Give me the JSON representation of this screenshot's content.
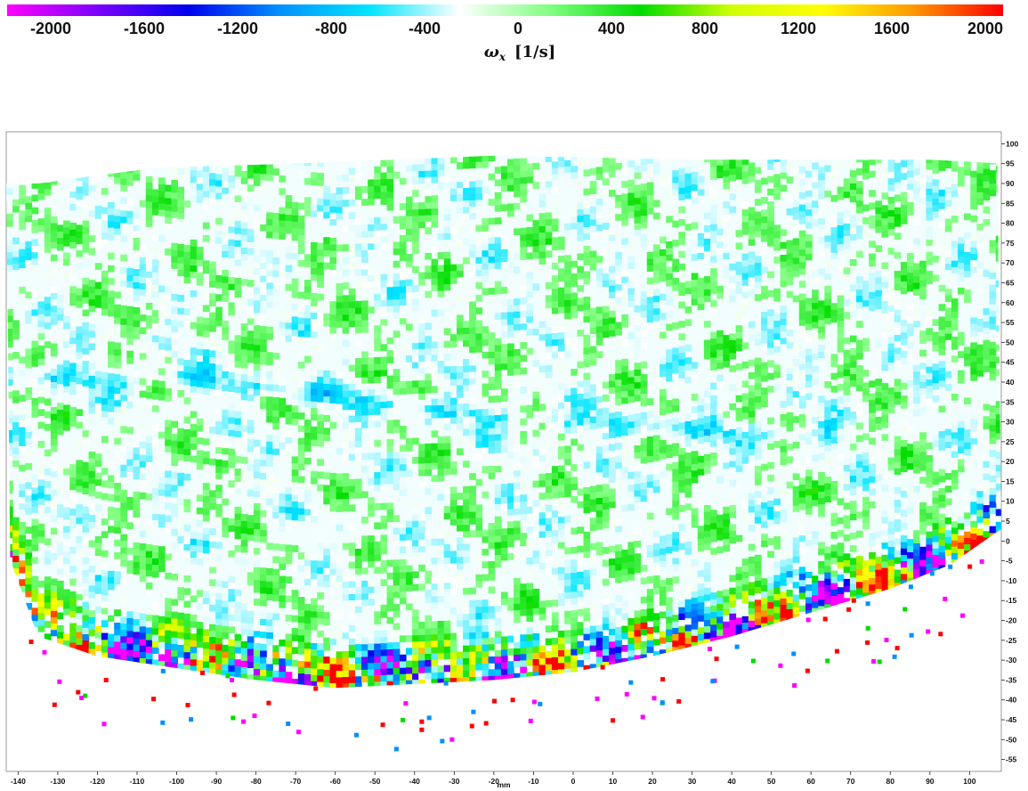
{
  "chart_data": {
    "type": "heatmap",
    "title": "",
    "colorbar": {
      "label_symbol": "ω",
      "label_subscript": "x",
      "label_units": "[1/s]",
      "range": [
        -2000,
        2000
      ],
      "ticks": [
        "-2000",
        "-1600",
        "-1200",
        "-800",
        "-400",
        "0",
        "400",
        "800",
        "1200",
        "1600",
        "2000"
      ],
      "colormap": [
        "#ff00ff",
        "#7a00ff",
        "#0000ee",
        "#0090ff",
        "#00e5ff",
        "#ffffff",
        "#80ff80",
        "#00dd00",
        "#d0ff00",
        "#ffff00",
        "#ff9900",
        "#ff0000"
      ]
    },
    "xaxis": {
      "label": "mm",
      "range": [
        -143,
        108
      ],
      "ticks": [
        "-140",
        "-130",
        "-120",
        "-110",
        "-100",
        "-90",
        "-80",
        "-70",
        "-60",
        "-50",
        "-40",
        "-30",
        "-20",
        "-10",
        "0",
        "10",
        "20",
        "30",
        "40",
        "50",
        "60",
        "70",
        "80",
        "90",
        "100"
      ]
    },
    "yaxis": {
      "label": "",
      "range": [
        -58,
        103
      ],
      "position": "right",
      "ticks": [
        "100",
        "95",
        "90",
        "85",
        "80",
        "75",
        "70",
        "65",
        "60",
        "55",
        "50",
        "45",
        "40",
        "35",
        "30",
        "25",
        "20",
        "15",
        "10",
        "5",
        "0",
        "-5",
        "-10",
        "-15",
        "-20",
        "-25",
        "-30",
        "-35",
        "-40",
        "-45",
        "-50",
        "-55"
      ]
    },
    "field_summary": {
      "freestream_vorticity": [
        -400,
        400
      ],
      "shear_layer_vorticity": [
        -2000,
        2000
      ],
      "upper_boundary_y": [
        [
          -135,
          90
        ],
        [
          -105,
          94
        ],
        [
          -70,
          95
        ],
        [
          -20,
          97
        ],
        [
          30,
          96
        ],
        [
          90,
          96
        ],
        [
          108,
          95
        ]
      ],
      "lower_boundary_y": [
        [
          -143,
          0
        ],
        [
          -135,
          -22
        ],
        [
          -120,
          -27
        ],
        [
          -100,
          -30
        ],
        [
          -80,
          -33
        ],
        [
          -60,
          -35
        ],
        [
          -40,
          -34
        ],
        [
          -20,
          -33
        ],
        [
          0,
          -31
        ],
        [
          20,
          -27
        ],
        [
          40,
          -22
        ],
        [
          60,
          -16
        ],
        [
          80,
          -10
        ],
        [
          95,
          -4
        ],
        [
          108,
          5
        ]
      ],
      "vortex_band": [
        [
          -135,
          40
        ],
        [
          -100,
          41
        ],
        [
          -80,
          38
        ],
        [
          -60,
          36
        ],
        [
          -40,
          33
        ],
        [
          -20,
          31
        ],
        [
          0,
          29
        ],
        [
          20,
          28
        ],
        [
          40,
          27
        ],
        [
          60,
          26
        ]
      ],
      "background": "#f2fdfe"
    }
  }
}
